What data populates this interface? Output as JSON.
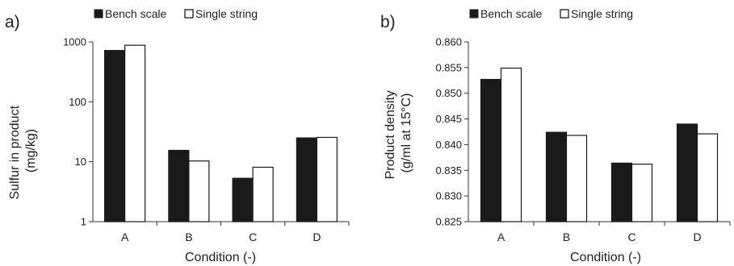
{
  "chart_data": [
    {
      "type": "bar",
      "panel_label": "a)",
      "categories": [
        "A",
        "B",
        "C",
        "D"
      ],
      "series": [
        {
          "name": "Bench scale",
          "color": "#1a1a1a",
          "values": [
            720,
            15.5,
            5.3,
            25
          ]
        },
        {
          "name": "Single string",
          "color": "#ffffff",
          "values": [
            880,
            10.3,
            8.1,
            25.5
          ]
        }
      ],
      "xlabel": "Condition (-)",
      "ylabel": [
        "Sulfur in product",
        "(mg/kg)"
      ],
      "yscale": "log",
      "ylim": [
        1,
        1000
      ],
      "yticks": [
        1,
        10,
        100,
        1000
      ],
      "ytick_labels": [
        "1",
        "10",
        "100",
        "1000"
      ],
      "grid": false,
      "legend_position": "top"
    },
    {
      "type": "bar",
      "panel_label": "b)",
      "categories": [
        "A",
        "B",
        "C",
        "D"
      ],
      "series": [
        {
          "name": "Bench scale",
          "color": "#1a1a1a",
          "values": [
            0.8527,
            0.8424,
            0.8364,
            0.844
          ]
        },
        {
          "name": "Single string",
          "color": "#ffffff",
          "values": [
            0.8549,
            0.8418,
            0.8362,
            0.8421
          ]
        }
      ],
      "xlabel": "Condition (-)",
      "ylabel": [
        "Product density",
        "(g/ml at 15°C)"
      ],
      "yscale": "linear",
      "ylim": [
        0.825,
        0.86
      ],
      "yticks": [
        0.825,
        0.83,
        0.835,
        0.84,
        0.845,
        0.85,
        0.855,
        0.86
      ],
      "ytick_labels": [
        "0.825",
        "0.830",
        "0.835",
        "0.840",
        "0.845",
        "0.850",
        "0.855",
        "0.860"
      ],
      "grid": false,
      "legend_position": "top"
    }
  ]
}
